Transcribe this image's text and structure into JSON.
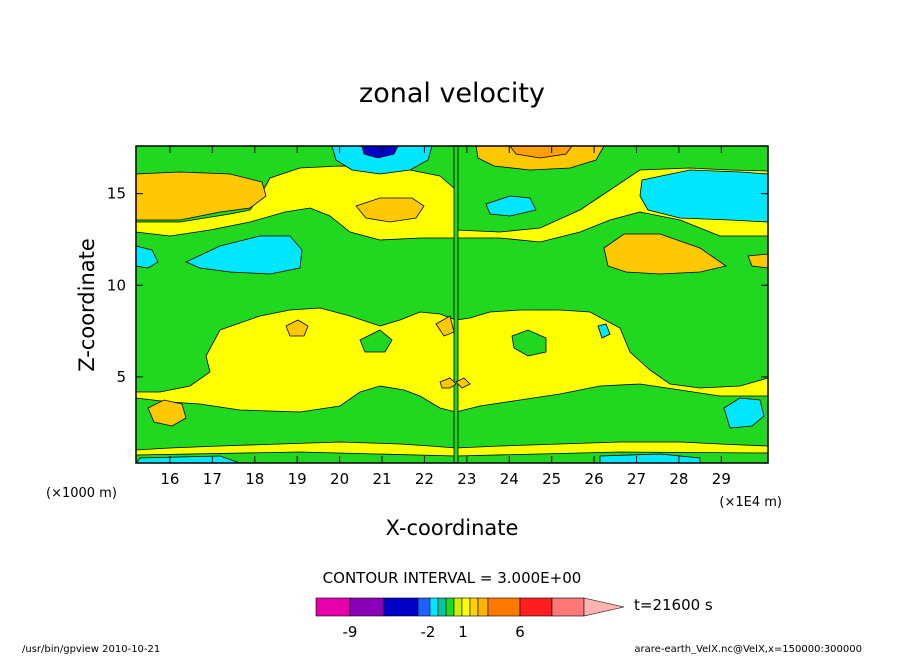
{
  "chart_data": {
    "type": "heatmap",
    "title": "zonal velocity",
    "xlabel": "X-coordinate",
    "ylabel": "Z-coordinate",
    "x_unit_left": "(×1000 m)",
    "x_unit_right": "(×1E4 m)",
    "x_ticks": [
      "16",
      "17",
      "18",
      "19",
      "20",
      "21",
      "22",
      "23",
      "24",
      "25",
      "26",
      "27",
      "28",
      "29"
    ],
    "x_tick_values": [
      16,
      17,
      18,
      19,
      20,
      21,
      22,
      23,
      24,
      25,
      26,
      27,
      28,
      29
    ],
    "xlim": [
      15.2,
      30.1
    ],
    "y_ticks": [
      "5",
      "10",
      "15"
    ],
    "y_tick_values": [
      5,
      10,
      15
    ],
    "ylim": [
      0.3,
      17.6
    ],
    "contour_interval": "CONTOUR INTERVAL = 3.000E+00",
    "time_label": "t=21600 s",
    "colorbar": {
      "colors": [
        "#e600aa",
        "#8a00b8",
        "#0000c8",
        "#1e60ff",
        "#00e6ff",
        "#00c8a0",
        "#20d820",
        "#c8f000",
        "#ffff00",
        "#ffd200",
        "#ffb400",
        "#ff7800",
        "#ff1e1e",
        "#ff7878",
        "#ffb4b4"
      ],
      "tick_labels": [
        "-9",
        "-2",
        "1",
        "6"
      ]
    },
    "field_colors": {
      "negative_strong": "#0000c8",
      "negative": "#00e6ff",
      "near_zero_neg": "#20d820",
      "near_zero_pos": "#ffff00",
      "positive": "#ffc800",
      "positive_strong": "#ffa000"
    }
  },
  "footer": {
    "left": "/usr/bin/gpview   2010-10-21",
    "right": "arare-earth_VelX.nc@VelX,x=150000:300000"
  }
}
